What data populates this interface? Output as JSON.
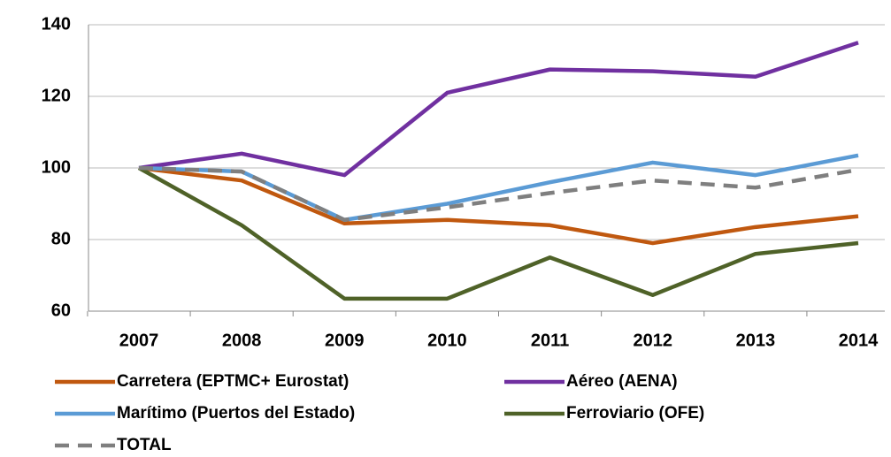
{
  "chart_data": {
    "type": "line",
    "categories": [
      "2007",
      "2008",
      "2009",
      "2010",
      "2011",
      "2012",
      "2013",
      "2014"
    ],
    "series": [
      {
        "name": "Carretera (EPTMC+ Eurostat)",
        "color": "#c0580f",
        "values": [
          100,
          96.5,
          84.5,
          85.5,
          84,
          79,
          83.5,
          86.5
        ]
      },
      {
        "name": "Aéreo (AENA)",
        "color": "#7030a0",
        "values": [
          100,
          104,
          98,
          121,
          127.5,
          127,
          125.5,
          135
        ]
      },
      {
        "name": "Marítimo (Puertos del Estado)",
        "color": "#5b9bd5",
        "values": [
          100,
          99,
          85.5,
          90,
          96,
          101.5,
          98,
          103.5
        ]
      },
      {
        "name": "Ferroviario (OFE)",
        "color": "#4f6228",
        "values": [
          100,
          84,
          63.5,
          63.5,
          75,
          64.5,
          76,
          79
        ]
      },
      {
        "name": "TOTAL",
        "color": "#7f7f7f",
        "dashed": true,
        "values": [
          100,
          99,
          85.5,
          89,
          93,
          96.5,
          94.5,
          99.5
        ]
      }
    ],
    "ylim": [
      60,
      140
    ],
    "yticks": [
      60,
      80,
      100,
      120,
      140
    ],
    "grid": true
  }
}
